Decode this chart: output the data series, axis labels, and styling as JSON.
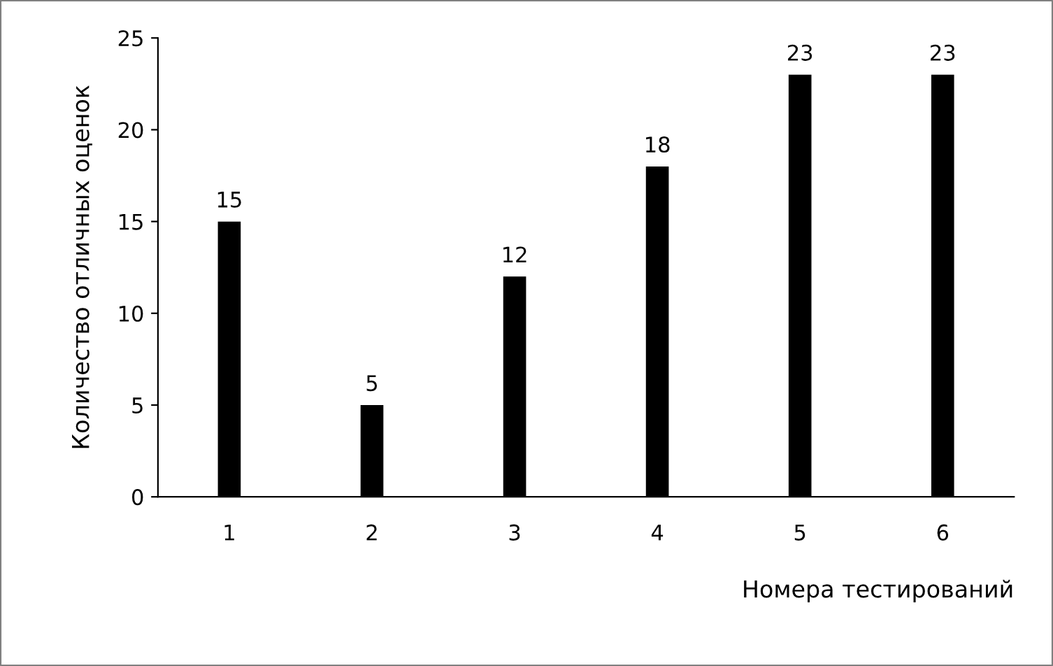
{
  "chart_data": {
    "type": "bar",
    "xlabel": "Номера тестирований",
    "ylabel": "Количество отличных оценок",
    "categories": [
      "1",
      "2",
      "3",
      "4",
      "5",
      "6"
    ],
    "values": [
      15,
      5,
      12,
      18,
      23,
      23
    ],
    "color": "#000000",
    "ylim": [
      0,
      25
    ],
    "yticks": [
      0,
      5,
      10,
      15,
      20,
      25
    ],
    "data_labels": true,
    "grid": false,
    "legend": false
  }
}
